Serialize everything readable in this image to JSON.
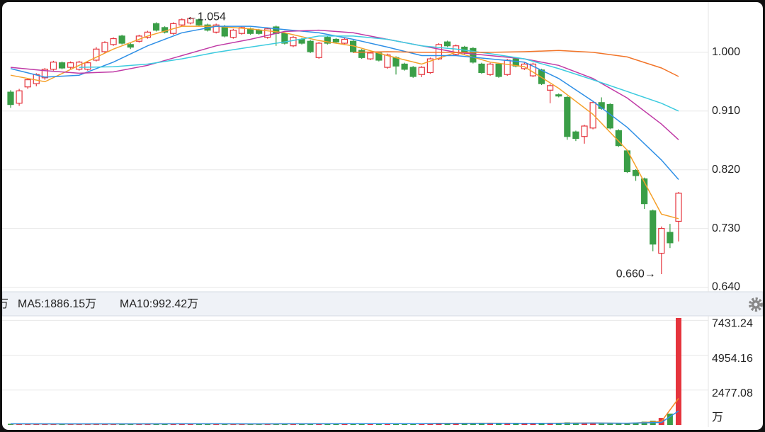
{
  "chart_data": [
    {
      "type": "candlestick",
      "open": [
        0.939,
        0.922,
        0.947,
        0.952,
        0.961,
        0.974,
        0.984,
        0.977,
        0.974,
        0.974,
        0.988,
        1.001,
        1.012,
        1.025,
        1.012,
        1.017,
        1.023,
        1.044,
        1.038,
        1.029,
        1.042,
        1.045,
        1.05,
        1.042,
        1.031,
        1.04,
        1.023,
        1.029,
        1.036,
        1.034,
        1.023,
        1.039,
        1.029,
        1.01,
        1.02,
        1.017,
        0.992,
        1.023,
        1.02,
        1.014,
        1.017,
        1.003,
        0.99,
        0.999,
        0.977,
        0.992,
        0.982,
        0.977,
        0.966,
        0.969,
        0.99,
        1.016,
        0.997,
        1.008,
        1.006,
        0.982,
        0.966,
        0.982,
        0.966,
        0.99,
        0.975,
        0.964,
        0.973,
        0.942,
        0.935,
        0.931,
        0.878,
        0.871,
        0.884,
        0.923,
        0.92,
        0.88,
        0.849,
        0.819,
        0.806,
        0.757,
        0.692,
        0.724,
        0.741
      ],
      "high": [
        0.942,
        0.944,
        0.96,
        0.968,
        0.976,
        0.987,
        0.986,
        0.986,
        0.987,
        0.986,
        1.008,
        1.017,
        1.023,
        1.027,
        1.014,
        1.027,
        1.033,
        1.046,
        1.04,
        1.046,
        1.052,
        1.054,
        1.052,
        1.044,
        1.044,
        1.042,
        1.036,
        1.04,
        1.038,
        1.036,
        1.038,
        1.041,
        1.031,
        1.025,
        1.022,
        1.019,
        1.016,
        1.025,
        1.022,
        1.022,
        1.019,
        1.005,
        1.001,
        1.001,
        0.998,
        0.994,
        0.984,
        0.979,
        0.979,
        0.992,
        1.014,
        1.018,
        1.012,
        1.01,
        1.008,
        0.984,
        0.984,
        0.984,
        0.99,
        0.992,
        0.984,
        0.984,
        0.975,
        0.951,
        0.937,
        0.933,
        0.88,
        0.889,
        0.925,
        0.931,
        0.922,
        0.882,
        0.851,
        0.821,
        0.808,
        0.759,
        0.733,
        0.737,
        0.786
      ],
      "low": [
        0.915,
        0.918,
        0.944,
        0.948,
        0.958,
        0.972,
        0.974,
        0.975,
        0.972,
        0.972,
        0.986,
        0.999,
        1.01,
        1.012,
        1.005,
        1.015,
        1.021,
        1.032,
        1.029,
        1.027,
        1.04,
        1.043,
        1.04,
        1.032,
        1.029,
        1.023,
        1.021,
        1.027,
        1.027,
        1.027,
        1.021,
        1.01,
        1.012,
        1.008,
        1.012,
        0.999,
        0.99,
        1.012,
        1.014,
        1.012,
        0.999,
        0.99,
        0.988,
        0.986,
        0.975,
        0.966,
        0.972,
        0.961,
        0.962,
        0.967,
        0.988,
        1.008,
        0.995,
        0.997,
        0.983,
        0.967,
        0.964,
        0.961,
        0.964,
        0.977,
        0.973,
        0.962,
        0.95,
        0.922,
        0.931,
        0.866,
        0.864,
        0.86,
        0.882,
        0.912,
        0.882,
        0.855,
        0.815,
        0.803,
        0.76,
        0.695,
        0.66,
        0.7,
        0.71
      ],
      "close": [
        0.92,
        0.941,
        0.958,
        0.966,
        0.974,
        0.985,
        0.976,
        0.984,
        0.985,
        0.984,
        1.005,
        1.015,
        1.021,
        1.014,
        1.008,
        1.025,
        1.031,
        1.034,
        1.031,
        1.044,
        1.05,
        1.052,
        1.042,
        1.034,
        1.042,
        1.025,
        1.034,
        1.038,
        1.029,
        1.029,
        1.036,
        1.029,
        1.014,
        1.023,
        1.014,
        1.001,
        1.014,
        1.014,
        1.016,
        1.02,
        1.001,
        0.992,
        0.999,
        0.988,
        0.996,
        0.979,
        0.974,
        0.963,
        0.977,
        0.99,
        1.012,
        1.01,
        1.01,
        0.999,
        0.985,
        0.969,
        0.982,
        0.963,
        0.988,
        0.979,
        0.982,
        0.982,
        0.952,
        0.949,
        0.933,
        0.871,
        0.868,
        0.887,
        0.923,
        0.914,
        0.884,
        0.857,
        0.817,
        0.811,
        0.768,
        0.706,
        0.73,
        0.708,
        0.784
      ],
      "up_color": "#e5343d",
      "down_color": "#3a9e47",
      "ylim": [
        0.634,
        1.077
      ],
      "yticks": [
        {
          "value": 0.64,
          "label": "0.640"
        },
        {
          "value": 0.73,
          "label": "0.730"
        },
        {
          "value": 0.82,
          "label": "0.820"
        },
        {
          "value": 0.91,
          "label": "0.910"
        },
        {
          "value": 1.0,
          "label": "1.000"
        }
      ],
      "grid": true,
      "high_label": "←1.054",
      "low_label": "0.660→",
      "ma_x": [
        0,
        4,
        8,
        12,
        16,
        20,
        24,
        28,
        32,
        36,
        40,
        44,
        48,
        52,
        56,
        60,
        64,
        68,
        72,
        76,
        78
      ],
      "series": [
        {
          "color": "#f5a02a",
          "values": [
            0.965,
            0.955,
            0.98,
            1.005,
            1.025,
            1.04,
            1.04,
            1.036,
            1.03,
            1.018,
            1.01,
            0.995,
            0.982,
            1.0,
            0.985,
            0.978,
            0.945,
            0.905,
            0.85,
            0.752,
            0.745
          ]
        },
        {
          "color": "#2e8fe6",
          "values": [
            0.975,
            0.962,
            0.965,
            0.985,
            1.01,
            1.03,
            1.04,
            1.04,
            1.035,
            1.03,
            1.02,
            1.008,
            0.995,
            0.995,
            0.99,
            0.985,
            0.96,
            0.925,
            0.885,
            0.835,
            0.805
          ]
        },
        {
          "color": "#c03aa6",
          "values": [
            0.977,
            0.972,
            0.968,
            0.97,
            0.98,
            0.995,
            1.01,
            1.02,
            1.032,
            1.034,
            1.03,
            1.02,
            1.01,
            1.0,
            0.995,
            0.99,
            0.98,
            0.96,
            0.93,
            0.89,
            0.866
          ]
        },
        {
          "color": "#3ccbdf",
          "values": [
            null,
            null,
            0.977,
            0.978,
            0.982,
            0.99,
            1.0,
            1.008,
            1.016,
            1.025,
            1.025,
            1.02,
            1.01,
            1.005,
            0.998,
            0.99,
            0.975,
            0.958,
            0.94,
            0.922,
            0.91
          ]
        },
        {
          "color": "#f27428",
          "values": [
            null,
            null,
            null,
            null,
            null,
            null,
            null,
            null,
            null,
            null,
            1.0,
            1.001,
            1.0,
            1.0,
            1.0,
            1.001,
            1.003,
            1.0,
            0.993,
            0.976,
            0.963
          ]
        }
      ]
    },
    {
      "type": "bar",
      "values": [
        80,
        70,
        90,
        85,
        75,
        80,
        60,
        70,
        65,
        70,
        110,
        100,
        90,
        85,
        60,
        75,
        80,
        95,
        70,
        85,
        90,
        100,
        80,
        75,
        70,
        85,
        75,
        70,
        65,
        60,
        80,
        90,
        95,
        85,
        70,
        90,
        100,
        80,
        70,
        75,
        85,
        95,
        80,
        90,
        100,
        95,
        80,
        90,
        85,
        110,
        150,
        120,
        110,
        100,
        130,
        120,
        110,
        115,
        120,
        100,
        90,
        95,
        110,
        130,
        100,
        180,
        150,
        140,
        160,
        90,
        95,
        100,
        100,
        108,
        231,
        300,
        500,
        800,
        7600
      ],
      "up_color": "#e5343d",
      "down_color": "#3a9e47",
      "ylim": [
        0,
        7750
      ],
      "yticks": [
        2477.08,
        4954.16,
        7431.24
      ],
      "unit_label": "万",
      "legend_clipped": "万",
      "grid": true,
      "ma_x": [
        0,
        4,
        8,
        12,
        16,
        20,
        24,
        28,
        32,
        36,
        40,
        44,
        48,
        52,
        56,
        60,
        64,
        68,
        72,
        76,
        78
      ],
      "series": [
        {
          "name": "MA5:1886.15万",
          "color": "#f5892a",
          "values": [
            78,
            75,
            72,
            78,
            80,
            85,
            80,
            72,
            82,
            85,
            88,
            92,
            90,
            115,
            120,
            110,
            120,
            140,
            105,
            248,
            1886.15
          ]
        },
        {
          "name": "MA10:992.42万",
          "color": "#2e8fe6",
          "values": [
            80,
            78,
            75,
            76,
            78,
            82,
            82,
            78,
            80,
            82,
            86,
            90,
            92,
            100,
            115,
            115,
            115,
            130,
            120,
            175,
            992.42
          ]
        }
      ]
    }
  ]
}
